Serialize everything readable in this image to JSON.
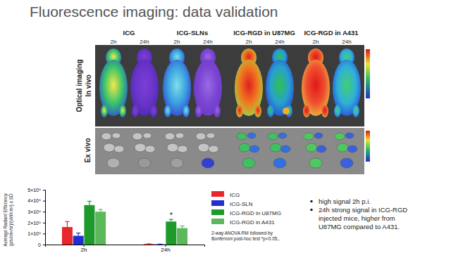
{
  "slide": {
    "title": "Fluorescence imaging: data validation",
    "panel": {
      "columns": [
        "ICG",
        "ICG-SLNs",
        "ICG-RGD in U87MG",
        "ICG-RGD in A431"
      ],
      "times": [
        "2h",
        "24h"
      ],
      "rows": [
        "Optical imaging",
        "In vivo",
        "Ex vivo"
      ]
    },
    "bullets": [
      [
        "high signal 2h p.i."
      ],
      [
        "24h strong signal in ICG-RGD",
        "injected mice, higher from",
        "U87MG compared to A431."
      ]
    ]
  },
  "chart_data": {
    "type": "bar",
    "ylabel": [
      "Average Radiant Efficiency",
      "(p/s/cm²/sr)/(uW/cm²) ± SD"
    ],
    "categories": [
      "2h",
      "24h"
    ],
    "series": [
      {
        "name": "ICG",
        "color": "#e8272a",
        "values": [
          1600000000,
          50000000
        ],
        "errors": [
          500000000,
          20000000
        ]
      },
      {
        "name": "ICG-SLN",
        "color": "#1f2fd0",
        "values": [
          800000000,
          30000000
        ],
        "errors": [
          250000000,
          10000000
        ]
      },
      {
        "name": "ICG-RGD in U87MG",
        "color": "#1e9a2c",
        "values": [
          3600000000,
          2100000000
        ],
        "errors": [
          350000000,
          200000000
        ]
      },
      {
        "name": "ICG-RGD in A431",
        "color": "#5cb85a",
        "values": [
          3000000000,
          1500000000
        ],
        "errors": [
          200000000,
          200000000
        ]
      }
    ],
    "ylim": [
      0,
      5000000000
    ],
    "yticks": [
      0,
      {
        "value": 1000000000,
        "label": "1×10⁹"
      },
      {
        "value": 2000000000,
        "label": "2×10⁹"
      },
      {
        "value": 3000000000,
        "label": "3×10⁹"
      },
      {
        "value": 4000000000,
        "label": "4×10⁹"
      },
      {
        "value": 5000000000,
        "label": "5×10⁹"
      }
    ],
    "grid": false,
    "legend": "right",
    "annotations": [
      "*",
      "2-way ANOVA RM followed by",
      "Bonferroni post-hoc test *p<0.05,."
    ]
  }
}
